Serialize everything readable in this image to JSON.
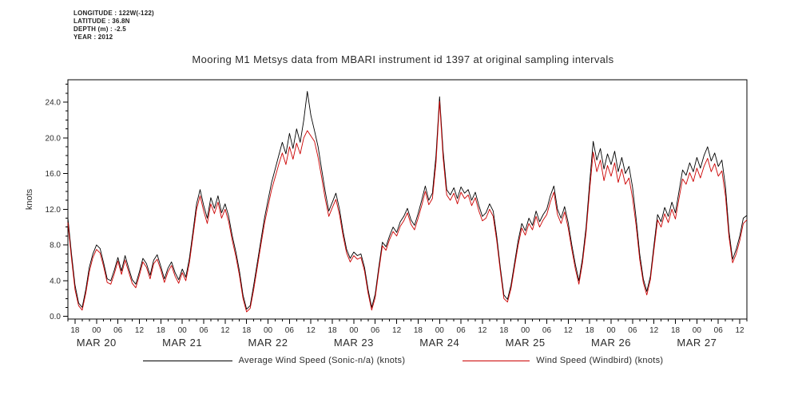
{
  "meta": {
    "lines": [
      "LONGITUDE : 122W(-122)",
      "LATITUDE : 36.8N",
      "DEPTH (m) : -2.5",
      "YEAR : 2012"
    ]
  },
  "chart_data": {
    "type": "line",
    "title": "Mooring M1 Metsys data from MBARI instrument id 1397 at original sampling intervals",
    "xlabel": "",
    "ylabel": "knots",
    "ylim": [
      -0.3,
      26.5
    ],
    "grid": false,
    "legend_position": "bottom",
    "x_domain_hours": [
      0,
      190
    ],
    "x_start_label": "hours since MAR 19 16:00 2012",
    "x_step_hours": 1,
    "yticks": [
      {
        "v": 0,
        "label": "0.0"
      },
      {
        "v": 4,
        "label": "4.0"
      },
      {
        "v": 8,
        "label": "8.0"
      },
      {
        "v": 12,
        "label": "12.0"
      },
      {
        "v": 16,
        "label": "16.0"
      },
      {
        "v": 20,
        "label": "20.0"
      },
      {
        "v": 24,
        "label": "24.0"
      }
    ],
    "xtick_start_hour": 2,
    "xtick_step_hours": 6,
    "xtick_labels": [
      "18",
      "00",
      "06",
      "12",
      "18",
      "00",
      "06",
      "12",
      "18",
      "00",
      "06",
      "12",
      "18",
      "00",
      "06",
      "12",
      "18",
      "00",
      "06",
      "12",
      "18",
      "00",
      "06",
      "12",
      "18",
      "00",
      "06",
      "12",
      "18",
      "00",
      "06",
      "12"
    ],
    "date_labels": [
      {
        "hour": 8,
        "label": "MAR 20"
      },
      {
        "hour": 32,
        "label": "MAR 21"
      },
      {
        "hour": 56,
        "label": "MAR 22"
      },
      {
        "hour": 80,
        "label": "MAR 23"
      },
      {
        "hour": 104,
        "label": "MAR 24"
      },
      {
        "hour": 128,
        "label": "MAR 25"
      },
      {
        "hour": 152,
        "label": "MAR 26"
      },
      {
        "hour": 176,
        "label": "MAR 27"
      }
    ],
    "series": [
      {
        "name": "Average Wind Speed (Sonic-n/a) (knots)",
        "color": "#000000",
        "values": [
          11.0,
          7.0,
          3.5,
          1.5,
          1.0,
          3.0,
          5.5,
          7.0,
          8.0,
          7.6,
          6.0,
          4.2,
          4.0,
          5.2,
          6.6,
          5.1,
          6.8,
          5.4,
          4.1,
          3.6,
          5.0,
          6.5,
          5.9,
          4.6,
          6.3,
          6.9,
          5.6,
          4.2,
          5.4,
          6.1,
          4.9,
          4.1,
          5.3,
          4.4,
          6.5,
          9.5,
          12.6,
          14.2,
          12.4,
          11.0,
          13.3,
          12.1,
          13.5,
          11.6,
          12.6,
          11.2,
          9.0,
          7.2,
          5.1,
          2.4,
          0.8,
          1.2,
          3.5,
          6.0,
          8.5,
          11.0,
          13.0,
          15.0,
          16.5,
          18.0,
          19.5,
          18.2,
          20.5,
          18.8,
          21.0,
          19.5,
          22.0,
          25.2,
          22.5,
          20.8,
          19.0,
          16.5,
          14.0,
          11.8,
          12.8,
          13.8,
          12.0,
          9.5,
          7.5,
          6.5,
          7.2,
          6.8,
          7.0,
          5.5,
          3.0,
          1.0,
          2.5,
          5.5,
          8.3,
          7.8,
          9.0,
          10.0,
          9.4,
          10.6,
          11.2,
          12.1,
          10.8,
          10.2,
          11.5,
          13.0,
          14.6,
          13.0,
          13.8,
          18.0,
          24.6,
          18.5,
          14.2,
          13.6,
          14.4,
          13.2,
          14.5,
          13.8,
          14.2,
          13.0,
          13.9,
          12.4,
          11.2,
          11.6,
          12.6,
          11.8,
          9.0,
          5.5,
          2.4,
          1.9,
          3.5,
          6.0,
          8.5,
          10.4,
          9.6,
          11.0,
          10.2,
          11.8,
          10.6,
          11.4,
          12.0,
          13.5,
          14.6,
          12.0,
          11.0,
          12.3,
          10.5,
          8.0,
          5.8,
          4.0,
          6.5,
          10.0,
          15.0,
          19.6,
          17.5,
          18.8,
          16.5,
          18.2,
          17.0,
          18.5,
          16.2,
          17.8,
          16.0,
          16.8,
          14.5,
          11.0,
          7.0,
          4.2,
          2.8,
          4.5,
          8.0,
          11.4,
          10.6,
          12.2,
          11.2,
          12.8,
          11.6,
          14.0,
          16.4,
          15.8,
          17.2,
          16.2,
          17.8,
          16.6,
          18.0,
          19.0,
          17.4,
          18.3,
          16.8,
          17.5,
          14.5,
          9.5,
          6.4,
          7.5,
          9.0,
          11.0,
          11.3
        ]
      },
      {
        "name": "Wind Speed (Windbird) (knots)",
        "color": "#cc0000",
        "values": [
          10.5,
          6.5,
          3.0,
          1.2,
          0.7,
          2.6,
          5.0,
          6.6,
          7.5,
          7.1,
          5.6,
          3.8,
          3.6,
          4.8,
          6.2,
          4.7,
          6.3,
          5.0,
          3.7,
          3.2,
          4.6,
          6.1,
          5.5,
          4.2,
          5.9,
          6.4,
          5.2,
          3.8,
          5.0,
          5.7,
          4.5,
          3.7,
          4.9,
          4.0,
          6.0,
          9.0,
          12.0,
          13.5,
          11.8,
          10.4,
          12.6,
          11.5,
          12.8,
          11.0,
          12.0,
          10.6,
          8.5,
          6.7,
          4.6,
          2.0,
          0.5,
          0.9,
          3.0,
          5.5,
          8.0,
          10.4,
          12.3,
          14.2,
          15.6,
          17.0,
          18.3,
          17.0,
          19.0,
          17.6,
          19.4,
          18.2,
          20.0,
          20.8,
          20.2,
          19.6,
          17.8,
          15.6,
          13.2,
          11.2,
          12.2,
          13.1,
          11.4,
          9.0,
          7.1,
          6.1,
          6.8,
          6.4,
          6.6,
          5.1,
          2.6,
          0.7,
          2.1,
          5.1,
          7.9,
          7.4,
          8.6,
          9.5,
          9.0,
          10.1,
          10.7,
          11.6,
          10.3,
          9.7,
          11.0,
          12.4,
          14.0,
          12.5,
          13.2,
          17.2,
          24.1,
          17.8,
          13.6,
          13.0,
          13.8,
          12.6,
          13.9,
          13.2,
          13.6,
          12.4,
          13.3,
          11.8,
          10.7,
          11.0,
          12.0,
          11.2,
          8.5,
          5.1,
          2.0,
          1.6,
          3.1,
          5.6,
          8.0,
          9.9,
          9.1,
          10.4,
          9.7,
          11.2,
          10.0,
          10.8,
          11.4,
          12.8,
          13.9,
          11.4,
          10.4,
          11.7,
          9.9,
          7.5,
          5.3,
          3.6,
          6.0,
          9.4,
          14.2,
          18.4,
          16.2,
          17.5,
          15.2,
          16.9,
          15.7,
          17.2,
          15.0,
          16.5,
          14.8,
          15.5,
          13.3,
          10.2,
          6.4,
          3.8,
          2.4,
          4.1,
          7.5,
          10.8,
          10.0,
          11.5,
          10.5,
          12.0,
          10.9,
          13.2,
          15.4,
          14.8,
          16.1,
          15.1,
          16.6,
          15.5,
          16.8,
          17.7,
          16.2,
          17.1,
          15.7,
          16.3,
          13.5,
          8.9,
          6.0,
          7.0,
          8.5,
          10.4,
          10.8
        ]
      }
    ]
  }
}
